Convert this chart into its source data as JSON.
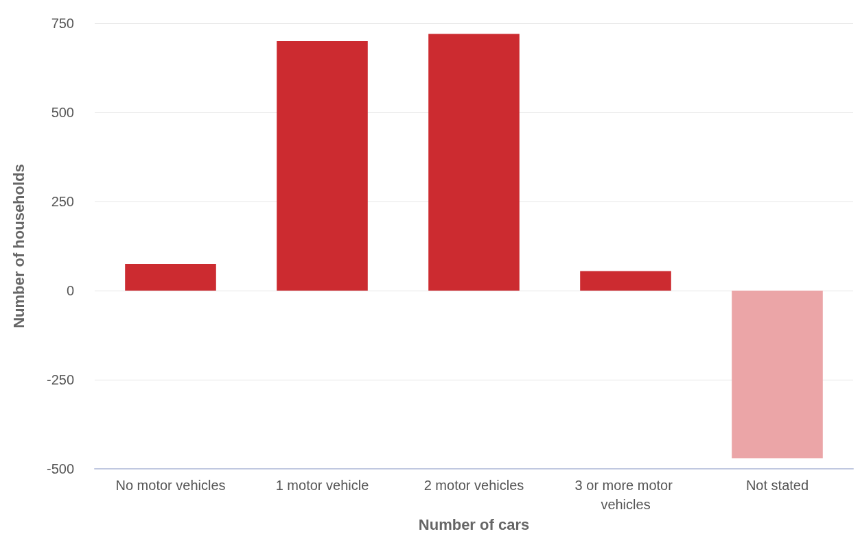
{
  "chart_data": {
    "type": "bar",
    "xlabel": "Number of cars",
    "ylabel": "Number of households",
    "categories": [
      "No motor vehicles",
      "1 motor vehicle",
      "2 motor vehicles",
      "3 or more motor vehicles",
      "Not stated"
    ],
    "values": [
      75,
      700,
      720,
      55,
      -470
    ],
    "colors": [
      "#cc2b30",
      "#cc2b30",
      "#cc2b30",
      "#cc2b30",
      "#eba5a7"
    ],
    "ylim": [
      -500,
      750
    ],
    "yticks": [
      -500,
      -250,
      0,
      250,
      500,
      750
    ],
    "grid": "y"
  }
}
